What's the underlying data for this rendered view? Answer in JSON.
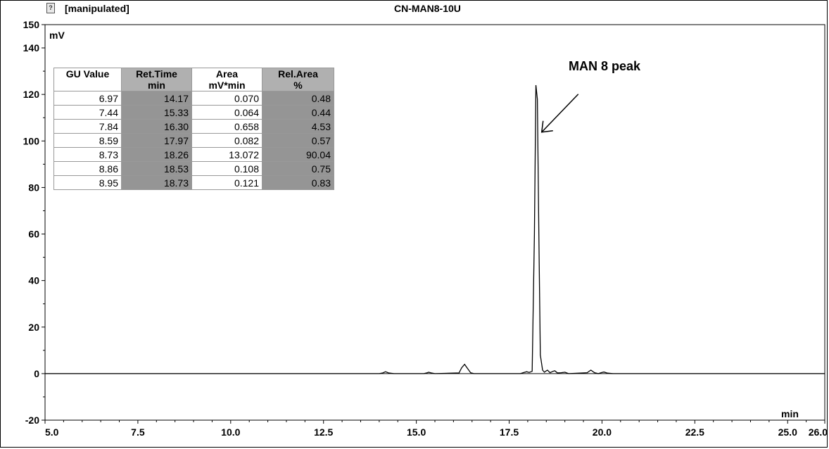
{
  "header": {
    "status_label": "[manipulated]",
    "title": "CN-MAN8-10U",
    "icon": "document-question-icon"
  },
  "annotation": {
    "text": "MAN 8 peak",
    "target_x": 18.3,
    "target_y": 105
  },
  "table": {
    "headers": [
      {
        "line1": "GU Value",
        "line2": ""
      },
      {
        "line1": "Ret.Time",
        "line2": "min"
      },
      {
        "line1": "Area",
        "line2": "mV*min"
      },
      {
        "line1": "Rel.Area",
        "line2": "%"
      }
    ],
    "rows": [
      [
        "6.97",
        "14.17",
        "0.070",
        "0.48"
      ],
      [
        "7.44",
        "15.33",
        "0.064",
        "0.44"
      ],
      [
        "7.84",
        "16.30",
        "0.658",
        "4.53"
      ],
      [
        "8.59",
        "17.97",
        "0.082",
        "0.57"
      ],
      [
        "8.73",
        "18.26",
        "13.072",
        "90.04"
      ],
      [
        "8.86",
        "18.53",
        "0.108",
        "0.75"
      ],
      [
        "8.95",
        "18.73",
        "0.121",
        "0.83"
      ]
    ]
  },
  "chart_data": {
    "type": "line",
    "title": "CN-MAN8-10U",
    "xlabel": "min",
    "ylabel": "mV",
    "xlim": [
      5.0,
      26.0
    ],
    "ylim": [
      -20,
      150
    ],
    "xticks": [
      "5.0",
      "7.5",
      "10.0",
      "12.5",
      "15.0",
      "17.5",
      "20.0",
      "22.5",
      "25.0",
      "26.0"
    ],
    "xtick_values": [
      5.0,
      7.5,
      10.0,
      12.5,
      15.0,
      17.5,
      20.0,
      22.5,
      25.0,
      26.0
    ],
    "yticks": [
      "-20",
      "0",
      "20",
      "40",
      "60",
      "80",
      "100",
      "120",
      "140",
      "150"
    ],
    "ytick_values": [
      -20,
      0,
      20,
      40,
      60,
      80,
      100,
      120,
      140,
      150
    ],
    "baseline": 0,
    "series": [
      {
        "x": [
          5.0,
          14.0,
          14.1,
          14.17,
          14.25,
          14.4,
          15.2,
          15.3,
          15.33,
          15.4,
          15.5,
          16.15,
          16.22,
          16.3,
          16.38,
          16.46,
          16.55,
          17.8,
          17.9,
          17.97,
          18.04,
          18.12,
          18.18,
          18.22,
          18.26,
          18.3,
          18.34,
          18.4,
          18.45,
          18.5,
          18.53,
          18.6,
          18.68,
          18.73,
          18.8,
          18.9,
          19.0,
          19.1,
          19.6,
          19.7,
          19.8,
          19.9,
          20.0,
          20.05,
          20.15,
          20.3,
          26.0
        ],
        "y": [
          0,
          0,
          0.3,
          0.8,
          0.3,
          0,
          0,
          0.4,
          0.6,
          0.3,
          0,
          0.3,
          2.5,
          4.0,
          2.2,
          0.4,
          0,
          0,
          0.5,
          0.8,
          0.5,
          1.0,
          60,
          124,
          118,
          60,
          8,
          1.5,
          0.6,
          1.2,
          1.5,
          0.4,
          1.0,
          1.2,
          0.3,
          0.4,
          0.6,
          0,
          0.4,
          1.5,
          0.4,
          0,
          0.5,
          0.7,
          0.2,
          0,
          0
        ]
      }
    ]
  }
}
